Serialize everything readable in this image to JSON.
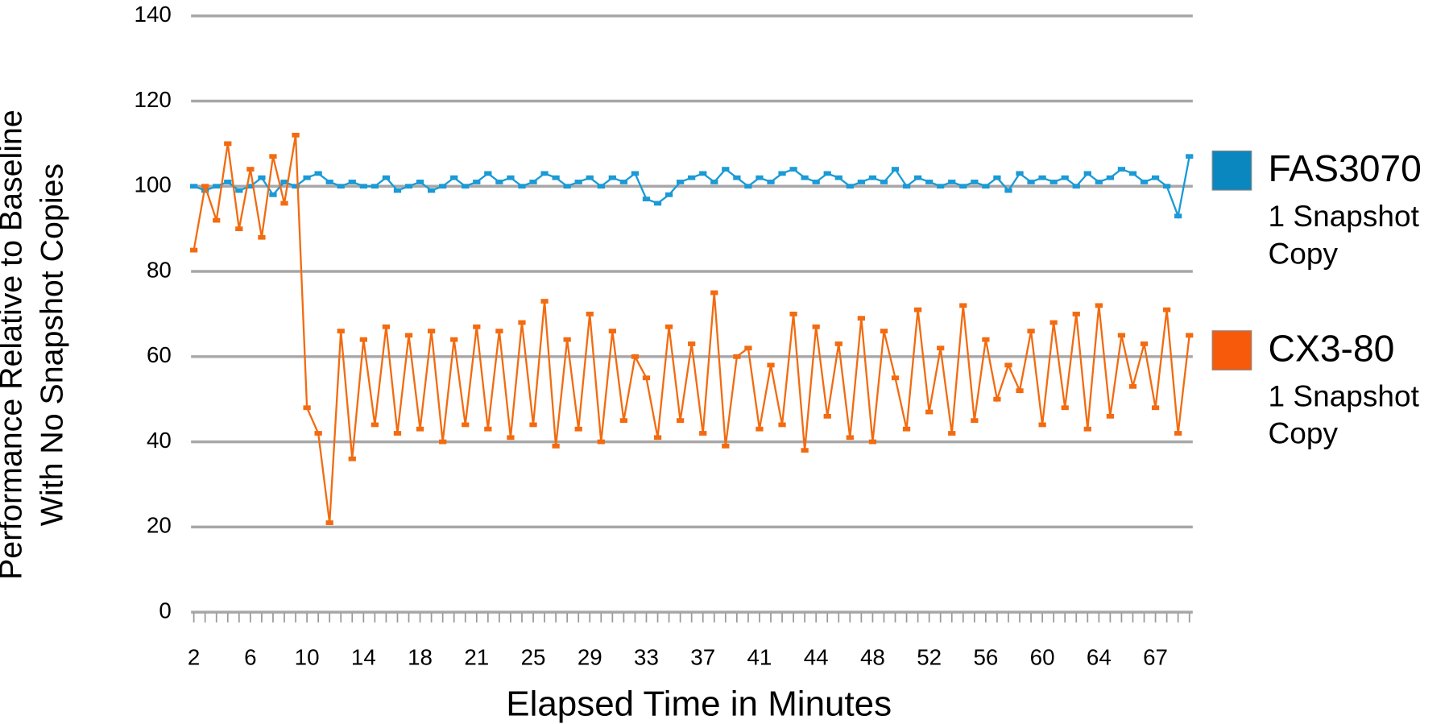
{
  "chart_data": {
    "type": "line",
    "ylabel": "Performance Relative to Baseline With No Snapshot Copies",
    "xlabel": "Elapsed Time in Minutes",
    "categories": [
      "2",
      null,
      null,
      null,
      null,
      "6",
      null,
      null,
      null,
      null,
      "10",
      null,
      null,
      null,
      null,
      "14",
      null,
      null,
      null,
      null,
      "18",
      null,
      null,
      null,
      null,
      "21",
      null,
      null,
      null,
      null,
      "25",
      null,
      null,
      null,
      null,
      "29",
      null,
      null,
      null,
      null,
      "33",
      null,
      null,
      null,
      null,
      "37",
      null,
      null,
      null,
      null,
      "41",
      null,
      null,
      null,
      null,
      "44",
      null,
      null,
      null,
      null,
      "48",
      null,
      null,
      null,
      null,
      "52",
      null,
      null,
      null,
      null,
      "56",
      null,
      null,
      null,
      null,
      "60",
      null,
      null,
      null,
      null,
      "64",
      null,
      null,
      null,
      null,
      "67",
      null,
      null,
      null
    ],
    "ylim": [
      0,
      140
    ],
    "yticks": [
      0,
      20,
      40,
      60,
      80,
      100,
      120,
      140
    ],
    "grid": true,
    "legend": "right",
    "series": [
      {
        "name": "FAS3070",
        "note": "1 Snapshot Copy",
        "color": "#1a9ad6",
        "legend_color": "#0b87bf",
        "values": [
          100,
          99,
          100,
          101,
          99,
          100,
          102,
          98,
          101,
          100,
          102,
          103,
          101,
          100,
          101,
          100,
          100,
          102,
          99,
          100,
          101,
          99,
          100,
          102,
          100,
          101,
          103,
          101,
          102,
          100,
          101,
          103,
          102,
          100,
          101,
          102,
          100,
          102,
          101,
          103,
          97,
          96,
          98,
          101,
          102,
          103,
          101,
          104,
          102,
          100,
          102,
          101,
          103,
          104,
          102,
          101,
          103,
          102,
          100,
          101,
          102,
          101,
          104,
          100,
          102,
          101,
          100,
          101,
          100,
          101,
          100,
          102,
          99,
          103,
          101,
          102,
          101,
          102,
          100,
          103,
          101,
          102,
          104,
          103,
          101,
          102,
          100,
          93,
          107
        ]
      },
      {
        "name": "CX3-80",
        "note": "1 Snapshot Copy",
        "color": "#f26b10",
        "legend_color": "#f65a0a",
        "values": [
          85,
          100,
          92,
          110,
          90,
          104,
          88,
          107,
          96,
          112,
          48,
          42,
          21,
          66,
          36,
          64,
          44,
          67,
          42,
          65,
          43,
          66,
          40,
          64,
          44,
          67,
          43,
          66,
          41,
          68,
          44,
          73,
          39,
          64,
          43,
          70,
          40,
          66,
          45,
          60,
          55,
          41,
          67,
          45,
          63,
          42,
          75,
          39,
          60,
          62,
          43,
          58,
          44,
          70,
          38,
          67,
          46,
          63,
          41,
          69,
          40,
          66,
          55,
          43,
          71,
          47,
          62,
          42,
          72,
          45,
          64,
          50,
          58,
          52,
          66,
          44,
          68,
          48,
          70,
          43,
          72,
          46,
          65,
          53,
          63,
          48,
          71,
          42,
          65
        ]
      }
    ]
  }
}
